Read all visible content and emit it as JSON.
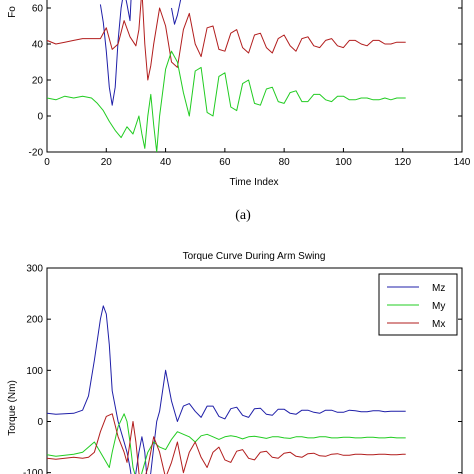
{
  "caption_a": "(a)",
  "chart_data": [
    {
      "type": "line",
      "title": "",
      "xlabel": "Time Index",
      "ylabel": "Fo",
      "xlim": [
        0,
        140
      ],
      "ylim": [
        -20,
        70
      ],
      "xticks": [
        "0",
        "20",
        "40",
        "60",
        "80",
        "100",
        "120",
        "140"
      ],
      "yticks": [
        "-20",
        "0",
        "20",
        "40",
        "60"
      ],
      "colors": {
        "blue": "#1f1fa8",
        "green": "#22cc22",
        "red": "#b21e1e"
      },
      "series": [
        {
          "color": "#1f1fa8",
          "x": [
            18,
            19,
            20,
            21,
            22,
            23,
            24,
            25,
            26,
            27,
            28,
            28.5
          ],
          "y": [
            62,
            52,
            36,
            16,
            6,
            16,
            42,
            60,
            70,
            62,
            53,
            70
          ]
        },
        {
          "color": "#1f1fa8",
          "x": [
            42,
            43,
            44,
            45,
            46
          ],
          "y": [
            60,
            51,
            56,
            64,
            70
          ]
        },
        {
          "color": "#b21e1e",
          "x": [
            0,
            3,
            6,
            9,
            12,
            15,
            18,
            20,
            22,
            24,
            26,
            28,
            30,
            31,
            32,
            33,
            34,
            35,
            36,
            38,
            40,
            42,
            44,
            46,
            48,
            50,
            52,
            54,
            56,
            58,
            60,
            62,
            64,
            66,
            68,
            70,
            72,
            74,
            76,
            78,
            80,
            82,
            84,
            86,
            88,
            90,
            92,
            94,
            96,
            98,
            100,
            102,
            104,
            106,
            108,
            110,
            112,
            114,
            116,
            118,
            120,
            121
          ],
          "y": [
            42,
            40,
            41,
            42,
            43,
            43,
            43,
            49,
            37,
            40,
            53,
            44,
            39,
            48,
            70,
            40,
            20,
            28,
            40,
            60,
            50,
            30,
            27,
            48,
            57,
            40,
            33,
            49,
            50,
            37,
            36,
            46,
            48,
            38,
            35,
            45,
            46,
            38,
            35,
            43,
            45,
            39,
            36,
            43,
            44,
            39,
            38,
            42,
            43,
            39,
            38,
            42,
            42,
            40,
            39,
            42,
            42,
            40,
            40,
            41,
            41,
            41
          ]
        },
        {
          "color": "#22cc22",
          "x": [
            0,
            3,
            6,
            9,
            12,
            15,
            17,
            19,
            21,
            23,
            25,
            27,
            29,
            31,
            32,
            33,
            34,
            35,
            36,
            37,
            38,
            40,
            42,
            44,
            46,
            48,
            50,
            52,
            54,
            56,
            58,
            60,
            62,
            64,
            66,
            68,
            70,
            72,
            74,
            76,
            78,
            80,
            82,
            84,
            86,
            88,
            90,
            92,
            94,
            96,
            98,
            100,
            102,
            104,
            106,
            108,
            110,
            112,
            114,
            116,
            118,
            120,
            121
          ],
          "y": [
            10,
            9,
            11,
            10,
            11,
            10,
            7,
            3,
            -3,
            -8,
            -12,
            -6,
            -10,
            0,
            -10,
            -18,
            0,
            12,
            -5,
            -20,
            0,
            26,
            36,
            30,
            13,
            0,
            25,
            27,
            2,
            0,
            22,
            24,
            5,
            3,
            18,
            20,
            7,
            6,
            15,
            16,
            8,
            7,
            13,
            14,
            8,
            8,
            12,
            12,
            9,
            8,
            11,
            11,
            9,
            9,
            10,
            10,
            9,
            9,
            10,
            9,
            10,
            10,
            10
          ]
        }
      ]
    },
    {
      "type": "line",
      "title": "Torque Curve During Arm Swing",
      "xlabel": "",
      "ylabel": "Torque (Nm)",
      "xlim": [
        0,
        140
      ],
      "ylim": [
        -130,
        300
      ],
      "xticks": [],
      "yticks": [
        "300",
        "200",
        "100",
        "0",
        "-100"
      ],
      "legend_position": "top-right",
      "series": [
        {
          "name": "Mz",
          "color": "#1f1fa8",
          "x": [
            0,
            3,
            6,
            9,
            12,
            14,
            16,
            18,
            19,
            20,
            21,
            22,
            24,
            26,
            27,
            28,
            29,
            30,
            31,
            32,
            33,
            34,
            35,
            36,
            37,
            38,
            40,
            42,
            44,
            46,
            48,
            50,
            52,
            54,
            56,
            58,
            60,
            62,
            64,
            66,
            68,
            70,
            72,
            74,
            76,
            78,
            80,
            82,
            84,
            86,
            88,
            90,
            92,
            94,
            96,
            98,
            100,
            102,
            104,
            106,
            108,
            110,
            112,
            114,
            116,
            118,
            120,
            121
          ],
          "y": [
            16,
            14,
            15,
            16,
            22,
            50,
            120,
            200,
            226,
            210,
            150,
            60,
            0,
            -40,
            -60,
            -90,
            -130,
            -100,
            -60,
            -30,
            -60,
            -130,
            -100,
            -50,
            0,
            20,
            100,
            40,
            0,
            30,
            35,
            20,
            8,
            30,
            30,
            10,
            5,
            25,
            28,
            12,
            8,
            25,
            26,
            14,
            12,
            24,
            24,
            16,
            14,
            22,
            22,
            18,
            16,
            22,
            22,
            18,
            18,
            22,
            21,
            19,
            19,
            21,
            21,
            19,
            20,
            20,
            20,
            20
          ]
        },
        {
          "name": "My",
          "color": "#22cc22",
          "x": [
            0,
            3,
            6,
            9,
            12,
            14,
            16,
            18,
            20,
            21,
            22,
            24,
            26,
            27,
            28,
            29,
            30,
            31,
            32,
            34,
            36,
            38,
            40,
            42,
            44,
            46,
            48,
            50,
            52,
            54,
            56,
            58,
            60,
            62,
            64,
            66,
            68,
            70,
            72,
            74,
            76,
            78,
            80,
            82,
            84,
            86,
            88,
            90,
            92,
            94,
            96,
            98,
            100,
            102,
            104,
            106,
            108,
            110,
            112,
            114,
            116,
            118,
            120,
            121
          ],
          "y": [
            -65,
            -68,
            -66,
            -64,
            -60,
            -50,
            -40,
            -60,
            -80,
            -90,
            -60,
            -10,
            15,
            0,
            -40,
            -90,
            -110,
            -130,
            -100,
            -60,
            -40,
            -50,
            -55,
            -35,
            -20,
            -25,
            -30,
            -40,
            -28,
            -25,
            -30,
            -35,
            -30,
            -28,
            -30,
            -34,
            -30,
            -29,
            -31,
            -33,
            -30,
            -30,
            -32,
            -33,
            -30,
            -30,
            -32,
            -32,
            -30,
            -30,
            -32,
            -32,
            -31,
            -31,
            -32,
            -32,
            -31,
            -31,
            -32,
            -32,
            -31,
            -32,
            -32,
            -32
          ]
        },
        {
          "name": "Mx",
          "color": "#b21e1e",
          "x": [
            0,
            3,
            6,
            9,
            12,
            14,
            16,
            18,
            20,
            22,
            24,
            26,
            27,
            28,
            29,
            30,
            31,
            32,
            34,
            36,
            38,
            40,
            42,
            44,
            46,
            48,
            50,
            52,
            54,
            56,
            58,
            60,
            62,
            64,
            66,
            68,
            70,
            72,
            74,
            76,
            78,
            80,
            82,
            84,
            86,
            88,
            90,
            92,
            94,
            96,
            98,
            100,
            102,
            104,
            106,
            108,
            110,
            112,
            114,
            116,
            118,
            120,
            121
          ],
          "y": [
            -72,
            -74,
            -72,
            -70,
            -72,
            -70,
            -60,
            -20,
            10,
            15,
            -30,
            -60,
            -80,
            -40,
            0,
            -40,
            -100,
            -130,
            -90,
            -30,
            -60,
            -110,
            -80,
            -40,
            -100,
            -60,
            -40,
            -70,
            -90,
            -60,
            -50,
            -75,
            -80,
            -58,
            -55,
            -72,
            -75,
            -60,
            -58,
            -70,
            -72,
            -62,
            -60,
            -68,
            -70,
            -63,
            -62,
            -67,
            -68,
            -64,
            -63,
            -66,
            -66,
            -64,
            -64,
            -65,
            -65,
            -64,
            -64,
            -65,
            -65,
            -64,
            -64
          ]
        }
      ]
    }
  ]
}
